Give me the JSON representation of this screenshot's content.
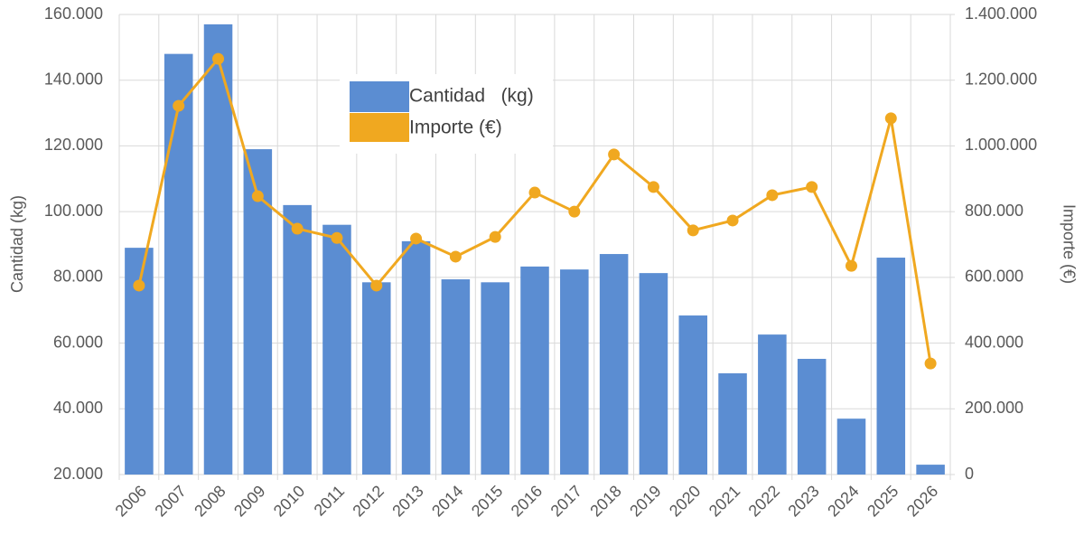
{
  "chart_data": {
    "type": "bar-line",
    "categories": [
      "2006",
      "2007",
      "2008",
      "2009",
      "2010",
      "2011",
      "2012",
      "2013",
      "2014",
      "2015",
      "2016",
      "2017",
      "2018",
      "2019",
      "2020",
      "2021",
      "2022",
      "2023",
      "2024",
      "2025",
      "2026"
    ],
    "y_label": "Cantidad   (kg)",
    "y2_label": "Importe (€)",
    "series": [
      {
        "name": "Cantidad   (kg)",
        "type": "bar",
        "color": "#5b8dd2",
        "values": [
          89000,
          148000,
          157000,
          119000,
          102000,
          96000,
          78500,
          91000,
          79400,
          78500,
          83300,
          82400,
          87100,
          81300,
          68400,
          50800,
          62600,
          55200,
          37000,
          86000,
          23000
        ]
      },
      {
        "name": "Importe (€)",
        "type": "line",
        "axis": "y2",
        "color": "#f0a820",
        "values": [
          575000,
          1122000,
          1265000,
          847000,
          748000,
          720000,
          575000,
          718000,
          663000,
          723000,
          858000,
          800000,
          974000,
          875000,
          743000,
          773000,
          850000,
          875000,
          635000,
          1084000,
          338000
        ]
      }
    ],
    "ylim": [
      20000,
      160000
    ],
    "yticks": [
      {
        "value": 20000,
        "label": "20.000"
      },
      {
        "value": 40000,
        "label": "40.000"
      },
      {
        "value": 60000,
        "label": "60.000"
      },
      {
        "value": 80000,
        "label": "80.000"
      },
      {
        "value": 100000,
        "label": "100.000"
      },
      {
        "value": 120000,
        "label": "120.000"
      },
      {
        "value": 140000,
        "label": "140.000"
      },
      {
        "value": 160000,
        "label": "160.000"
      }
    ],
    "y2lim": [
      0,
      1400000
    ],
    "y2ticks": [
      0,
      {
        "value": 200000,
        "label": "200.000"
      },
      {
        "value": 400000,
        "label": "400.000"
      },
      {
        "value": 600000,
        "label": "600.000"
      },
      {
        "value": 800000,
        "label": "800.000"
      },
      {
        "value": 1000000,
        "label": "1.000.000"
      },
      {
        "value": 1200000,
        "label": "1.200.000"
      },
      {
        "value": 1400000,
        "label": "1.400.000"
      }
    ],
    "grid": true
  }
}
